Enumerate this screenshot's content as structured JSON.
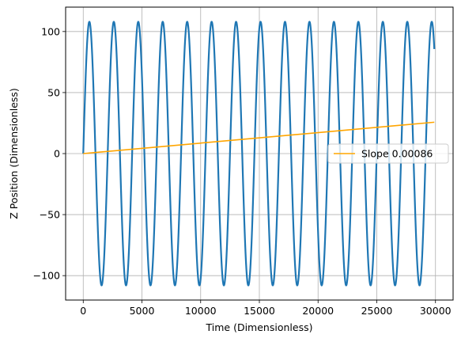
{
  "chart_data": {
    "type": "line",
    "xlabel": "Time (Dimensionless)",
    "ylabel": "Z Position (Dimensionless)",
    "xlim": [
      -1500,
      31500
    ],
    "ylim": [
      -120,
      120
    ],
    "xticks": [
      0,
      5000,
      10000,
      15000,
      20000,
      25000,
      30000
    ],
    "xtick_labels": [
      "0",
      "5000",
      "10000",
      "15000",
      "20000",
      "25000",
      "30000"
    ],
    "yticks": [
      -100,
      -50,
      0,
      50,
      100
    ],
    "ytick_labels": [
      "−100",
      "−50",
      "0",
      "50",
      "100"
    ],
    "grid": true,
    "legend_position": "center-right",
    "series": [
      {
        "color": "#1f77b4",
        "style": "oscillation",
        "amplitude": 108,
        "period": 2083,
        "x_start": 0,
        "x_end": 29900,
        "samples": 2400
      },
      {
        "name": "Slope 0.00086",
        "color": "#ffa500",
        "slope": 0.00086,
        "x": [
          0,
          29900
        ],
        "y": [
          0,
          25.7
        ]
      }
    ]
  }
}
